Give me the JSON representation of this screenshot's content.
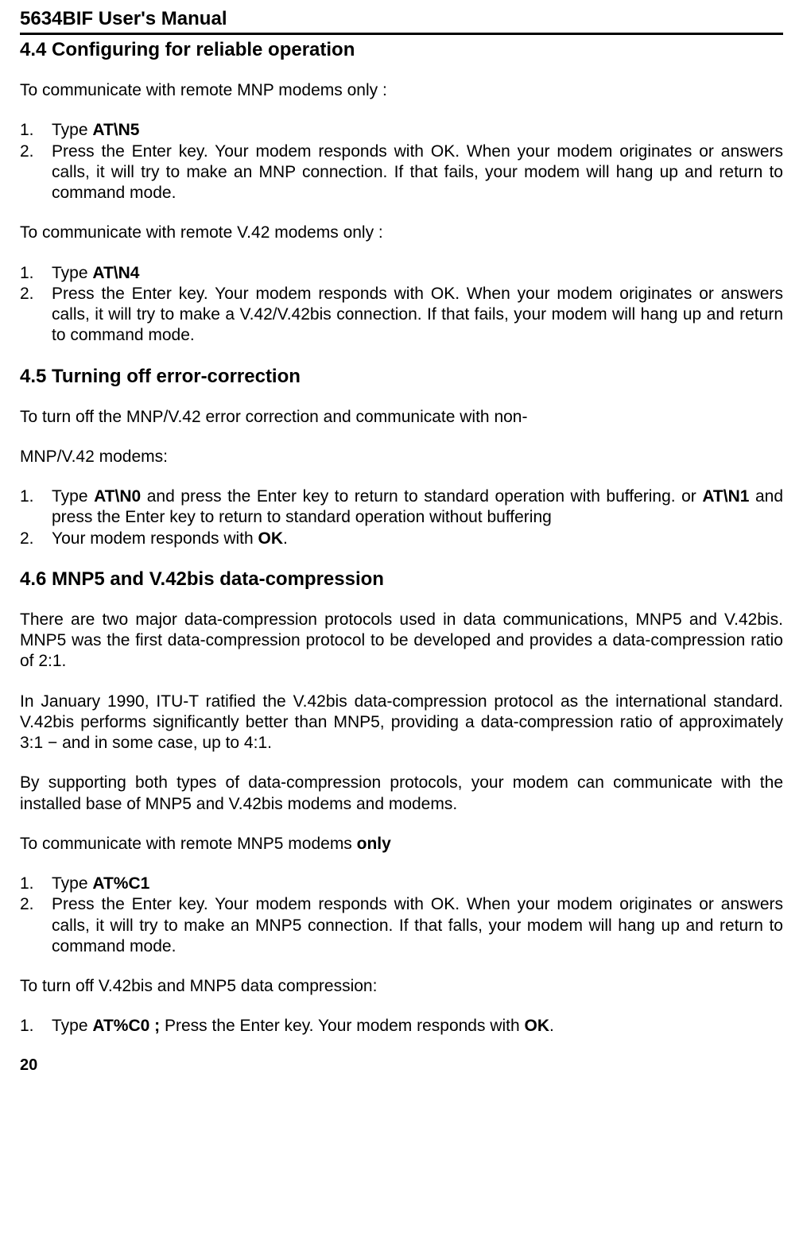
{
  "header": {
    "title": "5634BIF User's Manual"
  },
  "section_4_4": {
    "heading": "4.4 Configuring for reliable operation",
    "intro1": "To communicate with remote MNP modems only :",
    "list1": {
      "item1_num": "1.",
      "item1_prefix": "Type ",
      "item1_bold": "AT\\N5",
      "item2_num": "2.",
      "item2_text": "Press the Enter key. Your modem responds with OK. When your modem originates or answers calls, it will try to make an MNP connection. If that fails, your modem will hang up and return to command mode."
    },
    "intro2": "To communicate with remote V.42 modems only :",
    "list2": {
      "item1_num": "1.",
      "item1_prefix": "Type ",
      "item1_bold": "AT\\N4",
      "item2_num": "2.",
      "item2_text": "Press the Enter key. Your modem responds with OK. When your modem originates or answers calls, it will try to make a V.42/V.42bis connection. If that fails, your modem will hang up and return to command mode."
    }
  },
  "section_4_5": {
    "heading": "4.5 Turning off error-correction",
    "intro1": "To turn off the MNP/V.42 error correction and communicate with non-",
    "intro2": "MNP/V.42 modems:",
    "list": {
      "item1_num": "1.",
      "item1_text1": "Type ",
      "item1_bold1": "AT\\N0",
      "item1_text2": " and press the Enter key to return to standard operation with buffering. or ",
      "item1_bold2": "AT\\N1",
      "item1_text3": " and press the Enter key to return to standard operation without buffering",
      "item2_num": "2.",
      "item2_text1": "Your modem responds with ",
      "item2_bold": "OK",
      "item2_text2": "."
    }
  },
  "section_4_6": {
    "heading": "4.6 MNP5 and V.42bis data-compression",
    "para1": "There are two major data-compression protocols used in data communications, MNP5 and V.42bis. MNP5 was the first data-compression protocol to be developed and provides a data-compression ratio of 2:1.",
    "para2": "In January 1990, ITU-T ratified the V.42bis data-compression protocol as the international standard. V.42bis performs significantly better than MNP5, providing a data-compression ratio of approximately 3:1 − and in some case, up to 4:1.",
    "para3": "By supporting both types of data-compression protocols, your modem can communicate with the installed base of MNP5 and V.42bis modems and modems.",
    "intro1_text": "To communicate with remote MNP5 modems ",
    "intro1_bold": "only",
    "list1": {
      "item1_num": "1.",
      "item1_prefix": "Type ",
      "item1_bold": "AT%C1",
      "item2_num": "2.",
      "item2_text": "Press the Enter key. Your modem responds with OK. When your modem originates or answers calls, it will try to make an MNP5 connection. If that falls, your modem will hang up and return to command mode."
    },
    "intro2": "To turn off V.42bis and MNP5 data compression:",
    "list2": {
      "item1_num": "1.",
      "item1_text1": "Type ",
      "item1_bold1": "AT%C0 ;",
      "item1_text2": " Press the Enter key. Your modem responds with ",
      "item1_bold2": "OK",
      "item1_text3": "."
    }
  },
  "page_number": "20"
}
